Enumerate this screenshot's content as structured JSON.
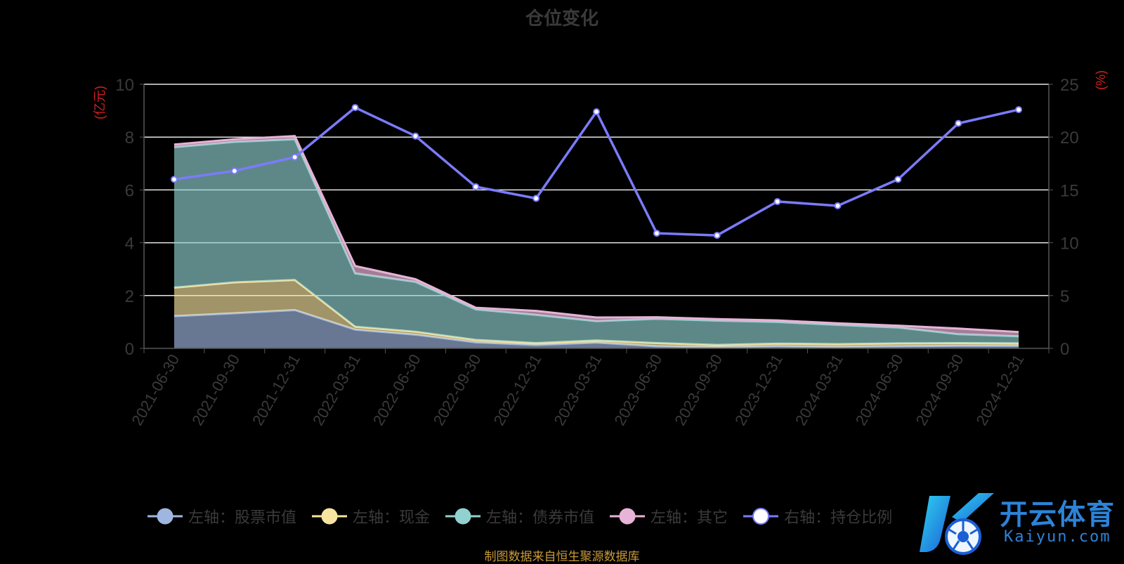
{
  "title": "仓位变化",
  "source_note": "制图数据来自恒生聚源数据库",
  "watermark": {
    "brand": "开云体育",
    "domain": "Kaiyun.com"
  },
  "chart_data": {
    "type": "area",
    "title": "仓位变化",
    "left_axis": {
      "unit_label": "(亿元)",
      "range": [
        0,
        10
      ],
      "ticks": [
        "0",
        "2",
        "4",
        "6",
        "8",
        "10"
      ]
    },
    "right_axis": {
      "unit_label": "(%)",
      "range": [
        0,
        25
      ],
      "ticks": [
        "0",
        "5",
        "10",
        "15",
        "20",
        "25"
      ]
    },
    "categories": [
      "2021-06-30",
      "2021-09-30",
      "2021-12-31",
      "2022-03-31",
      "2022-06-30",
      "2022-09-30",
      "2022-12-31",
      "2023-03-31",
      "2023-06-30",
      "2023-09-30",
      "2023-12-31",
      "2024-03-31",
      "2024-06-30",
      "2024-09-30",
      "2024-12-31"
    ],
    "stacked_series": [
      {
        "name": "左轴：股票市值",
        "color": "#9fb7e0",
        "values": [
          1.22,
          1.33,
          1.45,
          0.71,
          0.52,
          0.23,
          0.13,
          0.22,
          0.08,
          0.05,
          0.08,
          0.06,
          0.08,
          0.1,
          0.1
        ]
      },
      {
        "name": "左轴：现金",
        "color": "#f7e4a2",
        "values": [
          1.08,
          1.17,
          1.14,
          0.11,
          0.11,
          0.09,
          0.07,
          0.08,
          0.12,
          0.08,
          0.1,
          0.1,
          0.11,
          0.1,
          0.09
        ]
      },
      {
        "name": "左轴：债券市值",
        "color": "#91d1cf",
        "values": [
          5.32,
          5.32,
          5.33,
          2.02,
          1.89,
          1.16,
          1.07,
          0.73,
          0.92,
          0.92,
          0.82,
          0.73,
          0.6,
          0.34,
          0.27
        ]
      },
      {
        "name": "左轴：其它",
        "color": "#e7b3d6",
        "values": [
          0.1,
          0.1,
          0.12,
          0.28,
          0.1,
          0.06,
          0.15,
          0.14,
          0.06,
          0.06,
          0.06,
          0.06,
          0.07,
          0.21,
          0.16
        ]
      }
    ],
    "line_series": {
      "name": "右轴：持仓比例",
      "color": "#7b7bff",
      "axis": "right",
      "values": [
        16.0,
        16.8,
        18.1,
        22.8,
        20.1,
        15.3,
        14.2,
        22.4,
        10.9,
        10.7,
        13.9,
        13.5,
        16.0,
        21.3,
        22.6
      ]
    },
    "grid": true,
    "legend_position": "bottom"
  }
}
